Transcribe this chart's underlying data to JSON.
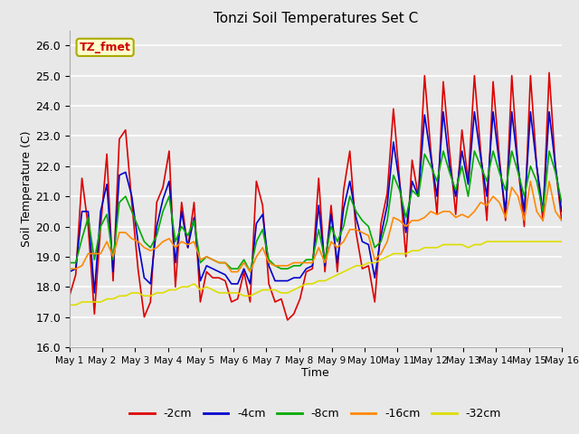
{
  "title": "Tonzi Soil Temperatures Set C",
  "xlabel": "Time",
  "ylabel": "Soil Temperature (C)",
  "ylim": [
    16.0,
    26.5
  ],
  "yticks": [
    16.0,
    17.0,
    18.0,
    19.0,
    20.0,
    21.0,
    22.0,
    23.0,
    24.0,
    25.0,
    26.0
  ],
  "annotation_text": "TZ_fmet",
  "bg_color": "#e8e8e8",
  "line_colors": {
    "-2cm": "#dd0000",
    "-4cm": "#0000cc",
    "-8cm": "#00aa00",
    "-16cm": "#ff8800",
    "-32cm": "#dddd00"
  },
  "x_tick_labels": [
    "May 1",
    "May 2",
    "May 3",
    "May 4",
    "May 5",
    "May 6",
    "May 7",
    "May 8",
    "May 9",
    "May 10",
    "May 11",
    "May 12",
    "May 13",
    "May 14",
    "May 15",
    "May 16"
  ],
  "data": {
    "-2cm": [
      17.7,
      18.4,
      21.6,
      20.0,
      17.1,
      20.0,
      22.4,
      18.2,
      22.9,
      23.2,
      20.8,
      18.6,
      17.0,
      17.5,
      20.8,
      21.3,
      22.5,
      18.0,
      20.8,
      19.3,
      20.8,
      17.5,
      18.5,
      18.3,
      18.3,
      18.2,
      17.5,
      17.6,
      18.5,
      17.5,
      21.5,
      20.7,
      18.1,
      17.5,
      17.6,
      16.9,
      17.1,
      17.6,
      18.5,
      18.6,
      21.6,
      18.5,
      20.7,
      18.5,
      21.2,
      22.5,
      19.8,
      18.6,
      18.7,
      17.5,
      20.1,
      21.1,
      23.9,
      21.5,
      19.0,
      22.2,
      21.0,
      25.0,
      22.5,
      20.4,
      24.8,
      22.5,
      20.4,
      23.2,
      21.5,
      25.0,
      22.5,
      20.2,
      24.8,
      22.3,
      20.2,
      25.0,
      22.0,
      20.0,
      25.0,
      22.0,
      20.2,
      25.1,
      22.0,
      20.2
    ],
    "-4cm": [
      18.5,
      18.6,
      20.5,
      20.5,
      17.8,
      20.5,
      21.4,
      18.5,
      21.7,
      21.8,
      21.0,
      19.5,
      18.3,
      18.1,
      20.0,
      20.9,
      21.5,
      18.8,
      20.5,
      19.3,
      20.3,
      18.2,
      18.7,
      18.6,
      18.5,
      18.4,
      18.1,
      18.1,
      18.6,
      18.1,
      20.1,
      20.4,
      18.7,
      18.2,
      18.2,
      18.2,
      18.3,
      18.3,
      18.6,
      18.7,
      20.7,
      18.7,
      20.4,
      18.8,
      20.6,
      21.5,
      20.3,
      19.5,
      19.4,
      18.3,
      19.7,
      20.7,
      22.8,
      21.4,
      19.8,
      21.5,
      21.0,
      23.7,
      22.3,
      21.0,
      23.8,
      22.0,
      21.0,
      22.5,
      21.4,
      23.8,
      22.3,
      21.0,
      23.8,
      22.1,
      20.5,
      23.8,
      22.0,
      20.5,
      23.8,
      22.0,
      20.5,
      23.8,
      22.0,
      20.5
    ],
    "-8cm": [
      18.8,
      18.8,
      19.6,
      20.3,
      18.9,
      20.0,
      20.4,
      18.9,
      20.8,
      21.0,
      20.5,
      20.0,
      19.5,
      19.3,
      19.7,
      20.5,
      21.0,
      19.5,
      20.0,
      19.7,
      20.2,
      18.8,
      19.0,
      18.9,
      18.8,
      18.8,
      18.6,
      18.6,
      18.9,
      18.5,
      19.5,
      19.9,
      18.9,
      18.7,
      18.6,
      18.6,
      18.7,
      18.7,
      18.9,
      18.9,
      19.9,
      18.9,
      20.0,
      19.5,
      20.0,
      21.0,
      20.5,
      20.2,
      20.0,
      19.3,
      19.5,
      20.2,
      21.7,
      21.2,
      20.3,
      21.2,
      21.0,
      22.4,
      22.0,
      21.5,
      22.5,
      21.8,
      21.2,
      22.0,
      21.0,
      22.5,
      22.0,
      21.5,
      22.5,
      21.8,
      21.2,
      22.5,
      21.8,
      21.0,
      22.0,
      21.5,
      20.5,
      22.5,
      21.8,
      20.8
    ],
    "-16cm": [
      18.6,
      18.6,
      18.7,
      19.1,
      19.1,
      19.1,
      19.5,
      19.0,
      19.8,
      19.8,
      19.6,
      19.5,
      19.3,
      19.2,
      19.3,
      19.5,
      19.6,
      19.3,
      19.5,
      19.4,
      19.5,
      18.9,
      19.0,
      18.9,
      18.8,
      18.8,
      18.5,
      18.5,
      18.8,
      18.5,
      19.0,
      19.3,
      18.8,
      18.7,
      18.7,
      18.7,
      18.8,
      18.8,
      18.8,
      18.8,
      19.3,
      18.8,
      19.5,
      19.3,
      19.5,
      19.9,
      19.9,
      19.8,
      19.7,
      18.9,
      19.1,
      19.5,
      20.3,
      20.2,
      20.0,
      20.2,
      20.2,
      20.3,
      20.5,
      20.4,
      20.5,
      20.5,
      20.3,
      20.4,
      20.3,
      20.5,
      20.8,
      20.7,
      21.0,
      20.8,
      20.3,
      21.3,
      21.0,
      20.2,
      21.5,
      20.5,
      20.2,
      21.5,
      20.5,
      20.2
    ],
    "-32cm": [
      17.4,
      17.4,
      17.5,
      17.5,
      17.5,
      17.5,
      17.6,
      17.6,
      17.7,
      17.7,
      17.8,
      17.8,
      17.7,
      17.7,
      17.8,
      17.8,
      17.9,
      17.9,
      18.0,
      18.0,
      18.1,
      17.9,
      18.0,
      17.9,
      17.8,
      17.8,
      17.8,
      17.8,
      17.7,
      17.7,
      17.8,
      17.9,
      17.9,
      17.9,
      17.8,
      17.8,
      17.9,
      18.0,
      18.1,
      18.1,
      18.2,
      18.2,
      18.3,
      18.4,
      18.5,
      18.6,
      18.7,
      18.7,
      18.8,
      18.8,
      18.9,
      19.0,
      19.1,
      19.1,
      19.1,
      19.2,
      19.2,
      19.3,
      19.3,
      19.3,
      19.4,
      19.4,
      19.4,
      19.4,
      19.3,
      19.4,
      19.4,
      19.5,
      19.5,
      19.5,
      19.5,
      19.5,
      19.5,
      19.5,
      19.5,
      19.5,
      19.5,
      19.5,
      19.5,
      19.5
    ]
  }
}
